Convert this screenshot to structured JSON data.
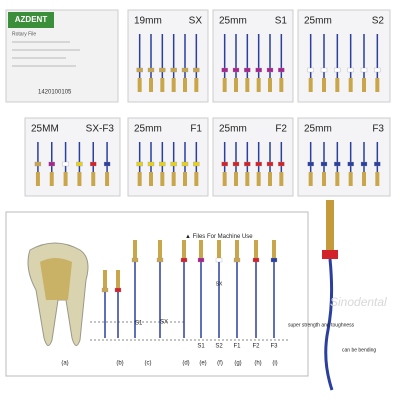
{
  "box": {
    "brand": "AZDENT",
    "product": "Rotary File",
    "lot": "1420100105"
  },
  "packs": [
    {
      "length": "19mm",
      "size": "SX"
    },
    {
      "length": "25mm",
      "size": "S1"
    },
    {
      "length": "25mm",
      "size": "S2"
    },
    {
      "length": "25MM",
      "size": "SX-F3"
    },
    {
      "length": "25mm",
      "size": "F1"
    },
    {
      "length": "25mm",
      "size": "F2"
    },
    {
      "length": "25mm",
      "size": "F3"
    }
  ],
  "watermark": "Sinodental",
  "diagram": {
    "heading": "Files For Machine Use",
    "side_labels": [
      "S1",
      "SX"
    ],
    "file_labels": [
      "S1",
      "S2",
      "SX",
      "F1",
      "F2",
      "F3"
    ],
    "captions": [
      "(a)",
      "(b)",
      "(c)",
      "(d)",
      "(e)",
      "(f)",
      "(g)",
      "(h)",
      "(i)"
    ]
  },
  "annotations": [
    "super strength and toughness",
    "can be bending"
  ]
}
